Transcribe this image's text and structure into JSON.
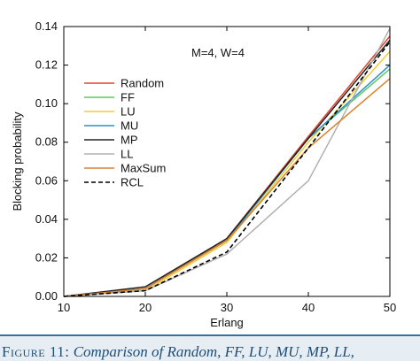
{
  "chart_data": {
    "type": "line",
    "x": [
      10,
      20,
      30,
      40,
      50
    ],
    "xlabel": "Erlang",
    "ylabel": "Blocking probability",
    "xlim": [
      10,
      50
    ],
    "ylim": [
      0,
      0.14
    ],
    "xticks": [
      "10",
      "20",
      "30",
      "40",
      "50"
    ],
    "yticks": [
      "0.00",
      "0.02",
      "0.04",
      "0.06",
      "0.08",
      "0.10",
      "0.12",
      "0.14"
    ],
    "annotation": "M=4, W=4",
    "grid": false,
    "legend_position": "upper-left",
    "series": [
      {
        "name": "Random",
        "color": "#e0442b",
        "dash": "solid",
        "values": [
          0.0,
          0.004,
          0.03,
          0.083,
          0.135
        ]
      },
      {
        "name": "FF",
        "color": "#5cc85c",
        "dash": "solid",
        "values": [
          0.0,
          0.004,
          0.029,
          0.082,
          0.118
        ]
      },
      {
        "name": "LU",
        "color": "#f5cc33",
        "dash": "solid",
        "values": [
          0.0,
          0.003,
          0.028,
          0.08,
          0.127
        ]
      },
      {
        "name": "MU",
        "color": "#2f8fc9",
        "dash": "solid",
        "values": [
          0.0,
          0.004,
          0.029,
          0.082,
          0.12
        ]
      },
      {
        "name": "MP",
        "color": "#222222",
        "dash": "solid",
        "values": [
          0.0,
          0.005,
          0.03,
          0.082,
          0.133
        ]
      },
      {
        "name": "LL",
        "color": "#b0b0b0",
        "dash": "solid",
        "values": [
          0.0,
          0.003,
          0.022,
          0.06,
          0.139
        ]
      },
      {
        "name": "MaxSum",
        "color": "#d9822b",
        "dash": "solid",
        "values": [
          0.0,
          0.004,
          0.029,
          0.077,
          0.113
        ]
      },
      {
        "name": "RCL",
        "color": "#000000",
        "dash": "dashed",
        "values": [
          0.0,
          0.003,
          0.023,
          0.077,
          0.132
        ]
      }
    ]
  },
  "caption": {
    "label": "Figure 11:",
    "text": "Comparison of Random, FF, LU, MU, MP, LL,"
  }
}
